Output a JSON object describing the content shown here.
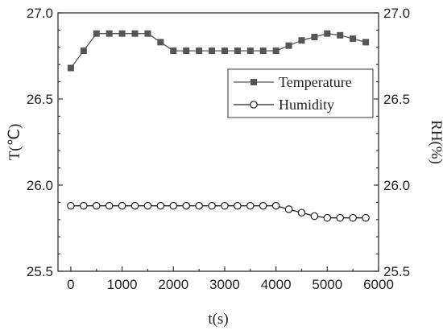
{
  "chart_data": {
    "type": "line",
    "xlabel": "t(s)",
    "ylabel_left": "T(℃)",
    "ylabel_right": "RH(%)",
    "xlim": [
      -250,
      6000
    ],
    "ylim": [
      25.5,
      27.0
    ],
    "ylim_right": [
      25.5,
      27.0
    ],
    "x_ticks": [
      "0",
      "1000",
      "2000",
      "3000",
      "4000",
      "5000",
      "6000"
    ],
    "y_ticks": [
      "25.5",
      "26.0",
      "26.5",
      "27.0"
    ],
    "y_ticks_right": [
      "25.5",
      "26.0",
      "26.5",
      "27.0"
    ],
    "grid": false,
    "legend_position": "top-right",
    "x": [
      0,
      250,
      500,
      750,
      1000,
      1250,
      1500,
      1750,
      2000,
      2250,
      2500,
      2750,
      3000,
      3250,
      3500,
      3750,
      4000,
      4250,
      4500,
      4750,
      5000,
      5250,
      5500,
      5750
    ],
    "series": [
      {
        "name": "Temperature",
        "marker": "filled-square",
        "color": "#555555",
        "values": [
          26.68,
          26.78,
          26.88,
          26.88,
          26.88,
          26.88,
          26.88,
          26.83,
          26.78,
          26.78,
          26.78,
          26.78,
          26.78,
          26.78,
          26.78,
          26.78,
          26.78,
          26.81,
          26.84,
          26.86,
          26.88,
          26.87,
          26.85,
          26.83
        ]
      },
      {
        "name": "Humidity",
        "marker": "open-circle",
        "color": "#222222",
        "values": [
          25.88,
          25.88,
          25.88,
          25.88,
          25.88,
          25.88,
          25.88,
          25.88,
          25.88,
          25.88,
          25.88,
          25.88,
          25.88,
          25.88,
          25.88,
          25.88,
          25.88,
          25.86,
          25.84,
          25.82,
          25.81,
          25.81,
          25.81,
          25.81
        ]
      }
    ]
  }
}
